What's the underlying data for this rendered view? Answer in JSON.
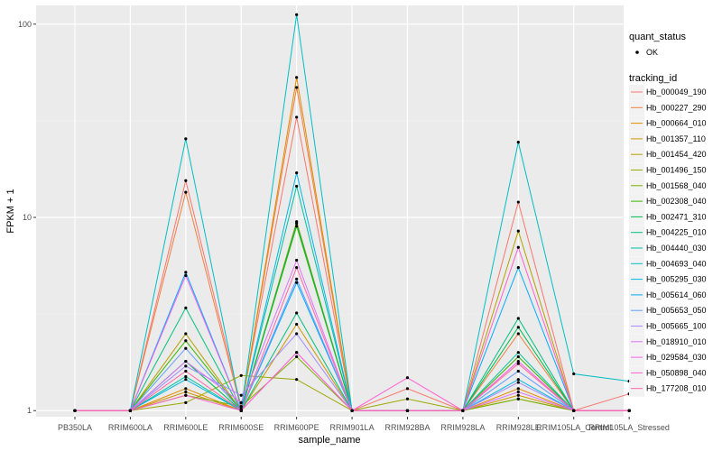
{
  "chart_data": {
    "type": "line",
    "xlabel": "sample_name",
    "ylabel": "FPKM + 1",
    "y_scale": "log10",
    "ylim": [
      0.93,
      125
    ],
    "y_ticks": [
      1,
      10,
      100
    ],
    "y_tick_labels": [
      "1",
      "10",
      "100"
    ],
    "grid": true,
    "legend_position": "right",
    "categories": [
      "PB350LA",
      "RRIM600LA",
      "RRIM600LE",
      "RRIM600SE",
      "RRIM600PE",
      "RRIM901LA",
      "RRIM928BA",
      "RRIM928LA",
      "RRIM928LE",
      "RRIM105LA_Control",
      "RRIM105LA_Stressed"
    ],
    "point_legend": {
      "title": "quant_status",
      "label": "OK"
    },
    "series_legend_title": "tracking_id",
    "series": [
      {
        "name": "Hb_000049_190",
        "color": "#F8766D",
        "values": [
          1,
          1,
          15.5,
          1.05,
          33,
          1,
          1.3,
          1,
          12,
          1,
          1.22
        ]
      },
      {
        "name": "Hb_000227_290",
        "color": "#EE8043",
        "values": [
          1,
          1,
          13.5,
          1.02,
          47,
          1,
          1.0,
          1,
          2.5,
          1,
          1.0
        ]
      },
      {
        "name": "Hb_000664_010",
        "color": "#E08B00",
        "values": [
          1,
          1,
          1.3,
          1.0,
          53,
          1,
          1.0,
          1,
          1.3,
          1,
          1.0
        ]
      },
      {
        "name": "Hb_001357_110",
        "color": "#CF9400",
        "values": [
          1,
          1,
          1.25,
          1.0,
          2.8,
          1,
          1.0,
          1,
          1.2,
          1,
          1.0
        ]
      },
      {
        "name": "Hb_001454_420",
        "color": "#B79F00",
        "values": [
          1,
          1,
          2.5,
          1.0,
          9.5,
          1,
          1.0,
          1,
          8.5,
          1,
          1.0
        ]
      },
      {
        "name": "Hb_001496_150",
        "color": "#9CA700",
        "values": [
          1,
          1,
          1.1,
          1.52,
          1.45,
          1,
          1.15,
          1,
          1.15,
          1,
          1.0
        ]
      },
      {
        "name": "Hb_001568_040",
        "color": "#7CAE00",
        "values": [
          1,
          1,
          1.2,
          1.05,
          1.9,
          1,
          1.0,
          1,
          1.15,
          1,
          1.0
        ]
      },
      {
        "name": "Hb_002308_040",
        "color": "#39B600",
        "values": [
          1,
          1,
          2.3,
          1.0,
          9.0,
          1,
          1.0,
          1,
          1.9,
          1,
          1.0
        ]
      },
      {
        "name": "Hb_002471_310",
        "color": "#00BB4E",
        "values": [
          1,
          1,
          1.8,
          1.0,
          9.3,
          1,
          1.0,
          1,
          2.7,
          1,
          1.0
        ]
      },
      {
        "name": "Hb_004225_010",
        "color": "#00BF7D",
        "values": [
          1,
          1,
          3.4,
          1.0,
          3.2,
          1,
          1.0,
          1,
          3.0,
          1,
          1.0
        ]
      },
      {
        "name": "Hb_004440_030",
        "color": "#00C1A3",
        "values": [
          1,
          1,
          1.5,
          1.0,
          14.5,
          1,
          1.0,
          1,
          2.0,
          1,
          1.0
        ]
      },
      {
        "name": "Hb_004693_040",
        "color": "#00BFC4",
        "values": [
          1,
          1,
          25.5,
          1.0,
          112,
          1,
          1.0,
          1,
          24.5,
          1.55,
          1.42
        ]
      },
      {
        "name": "Hb_005295_030",
        "color": "#00B8E5",
        "values": [
          1,
          1,
          1.45,
          1.0,
          17,
          1,
          1.0,
          1,
          1.45,
          1,
          1.0
        ]
      },
      {
        "name": "Hb_005614_060",
        "color": "#00ABFD",
        "values": [
          1,
          1,
          5.2,
          1.0,
          4.6,
          1,
          1.0,
          1,
          5.5,
          1,
          1.0
        ]
      },
      {
        "name": "Hb_005653_050",
        "color": "#619CFF",
        "values": [
          1,
          1,
          2.1,
          1.0,
          4.8,
          1,
          1.0,
          1,
          1.6,
          1,
          1.0
        ]
      },
      {
        "name": "Hb_005665_100",
        "color": "#A58AFF",
        "values": [
          1,
          1,
          1.7,
          1.2,
          2.5,
          1,
          1.0,
          1,
          1.4,
          1,
          1.0
        ]
      },
      {
        "name": "Hb_018910_010",
        "color": "#DB72FB",
        "values": [
          1,
          1,
          1.8,
          1.1,
          6.0,
          1,
          1.0,
          1,
          1.25,
          1,
          1.0
        ]
      },
      {
        "name": "Hb_029584_030",
        "color": "#F265E7",
        "values": [
          1,
          1,
          5.0,
          1.0,
          2.0,
          1,
          1.0,
          1,
          1.8,
          1,
          1.0
        ]
      },
      {
        "name": "Hb_050898_040",
        "color": "#FD61D1",
        "values": [
          1,
          1,
          1.2,
          1.0,
          2.0,
          1,
          1.48,
          1,
          7.0,
          1,
          1.0
        ]
      },
      {
        "name": "Hb_177208_010",
        "color": "#FF67A4",
        "values": [
          1,
          1,
          1.6,
          1.0,
          5.5,
          1,
          1.0,
          1,
          1.75,
          1,
          1.0
        ]
      }
    ]
  }
}
